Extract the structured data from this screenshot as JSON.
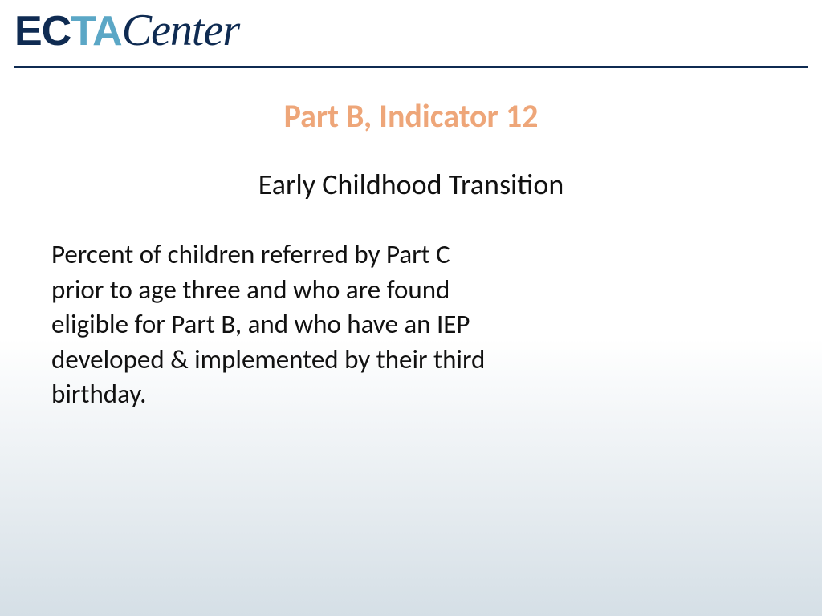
{
  "logo": {
    "ec": "EC",
    "ta": "TA",
    "center": "Center"
  },
  "title": "Part B, Indicator 12",
  "subtitle": "Early Childhood Transition",
  "body": "Percent of children referred by Part C prior to age three and who are found eligible for Part B, and who have an IEP developed & implemented by their third birthday.",
  "colors": {
    "brand_dark": "#0f2b52",
    "brand_light": "#5ba7c6",
    "title": "#eea679",
    "text": "#111111",
    "bg_top": "#ffffff",
    "bg_bottom": "#d5dfe6"
  },
  "fonts": {
    "title_size": 40,
    "subtitle_size": 36,
    "body_size": 33,
    "logo_size": 52
  }
}
